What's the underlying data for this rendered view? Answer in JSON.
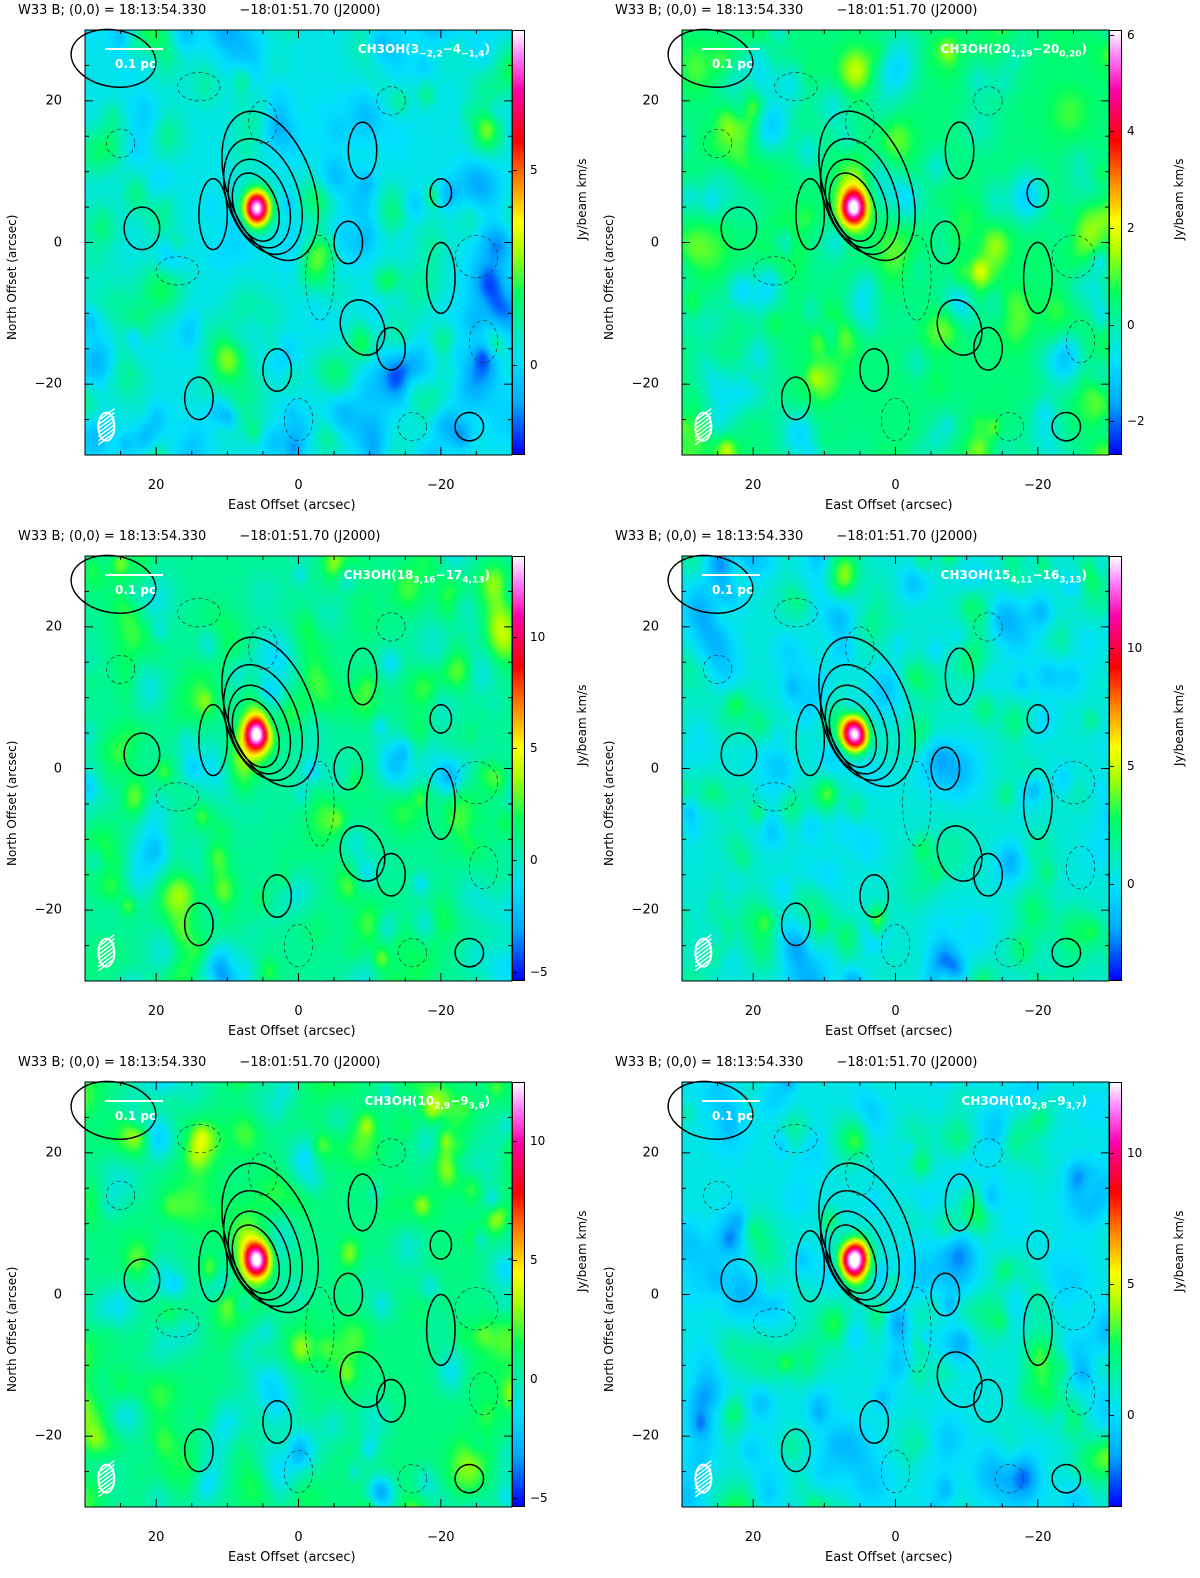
{
  "chart_data": {
    "type": "heatmap",
    "header": {
      "source": "W33 B; (0,0) = 18:13:54.330",
      "dec": "−18:01:51.70 (J2000)"
    },
    "xlabel": "East Offset (arcsec)",
    "ylabel": "North Offset (arcsec)",
    "colorbar_label": "Jy/beam km/s",
    "xlim": [
      30,
      -30
    ],
    "ylim": [
      -30,
      30
    ],
    "x_ticks": [
      "20",
      "0",
      "−20"
    ],
    "x_tick_values": [
      20,
      0,
      -20
    ],
    "y_ticks": [
      "20",
      "0",
      "−20"
    ],
    "y_tick_values": [
      20,
      0,
      -20
    ],
    "scale_bar": "0.1 pc",
    "peak_offset": [
      6,
      5
    ],
    "panels": [
      {
        "molecule": "CH3OH(",
        "up": "3",
        "up_sub": "−2,2",
        "dash": "−",
        "lo": "4",
        "lo_sub": "−1,4",
        "close": ")",
        "crange": [
          -2.3,
          8.6
        ],
        "cticks": [
          5,
          0
        ],
        "ctick_labels": [
          "5",
          "0"
        ],
        "seed": 1
      },
      {
        "molecule": "CH3OH(",
        "up": "20",
        "up_sub": "1,19",
        "dash": "−",
        "lo": "20",
        "lo_sub": "0,20",
        "close": ")",
        "crange": [
          -2.7,
          6.1
        ],
        "cticks": [
          6,
          4,
          2,
          0,
          -2
        ],
        "ctick_labels": [
          "6",
          "4",
          "2",
          "0",
          "−2"
        ],
        "seed": 2
      },
      {
        "molecule": "CH3OH(",
        "up": "18",
        "up_sub": "3,16",
        "dash": "−",
        "lo": "17",
        "lo_sub": "4,13",
        "close": ")",
        "crange": [
          -5.4,
          13.6
        ],
        "cticks": [
          10,
          5,
          0,
          -5
        ],
        "ctick_labels": [
          "10",
          "5",
          "0",
          "−5"
        ],
        "seed": 3
      },
      {
        "molecule": "CH3OH(",
        "up": "15",
        "up_sub": "4,11",
        "dash": "−",
        "lo": "16",
        "lo_sub": "3,13",
        "close": ")",
        "crange": [
          -4.1,
          13.9
        ],
        "cticks": [
          10,
          5,
          0
        ],
        "ctick_labels": [
          "10",
          "5",
          "0"
        ],
        "seed": 4
      },
      {
        "molecule": "CH3OH(",
        "up": "10",
        "up_sub": "2,9",
        "dash": "−",
        "lo": "9",
        "lo_sub": "3,6",
        "close": ")",
        "crange": [
          -5.4,
          12.5
        ],
        "cticks": [
          10,
          5,
          0,
          -5
        ],
        "ctick_labels": [
          "10",
          "5",
          "0",
          "−5"
        ],
        "seed": 5
      },
      {
        "molecule": "CH3OH(",
        "up": "10",
        "up_sub": "2,8",
        "dash": "−",
        "lo": "9",
        "lo_sub": "3,7",
        "close": ")",
        "crange": [
          -3.5,
          12.7
        ],
        "cticks": [
          10,
          5,
          0
        ],
        "ctick_labels": [
          "10",
          "5",
          "0"
        ],
        "seed": 6
      }
    ]
  }
}
